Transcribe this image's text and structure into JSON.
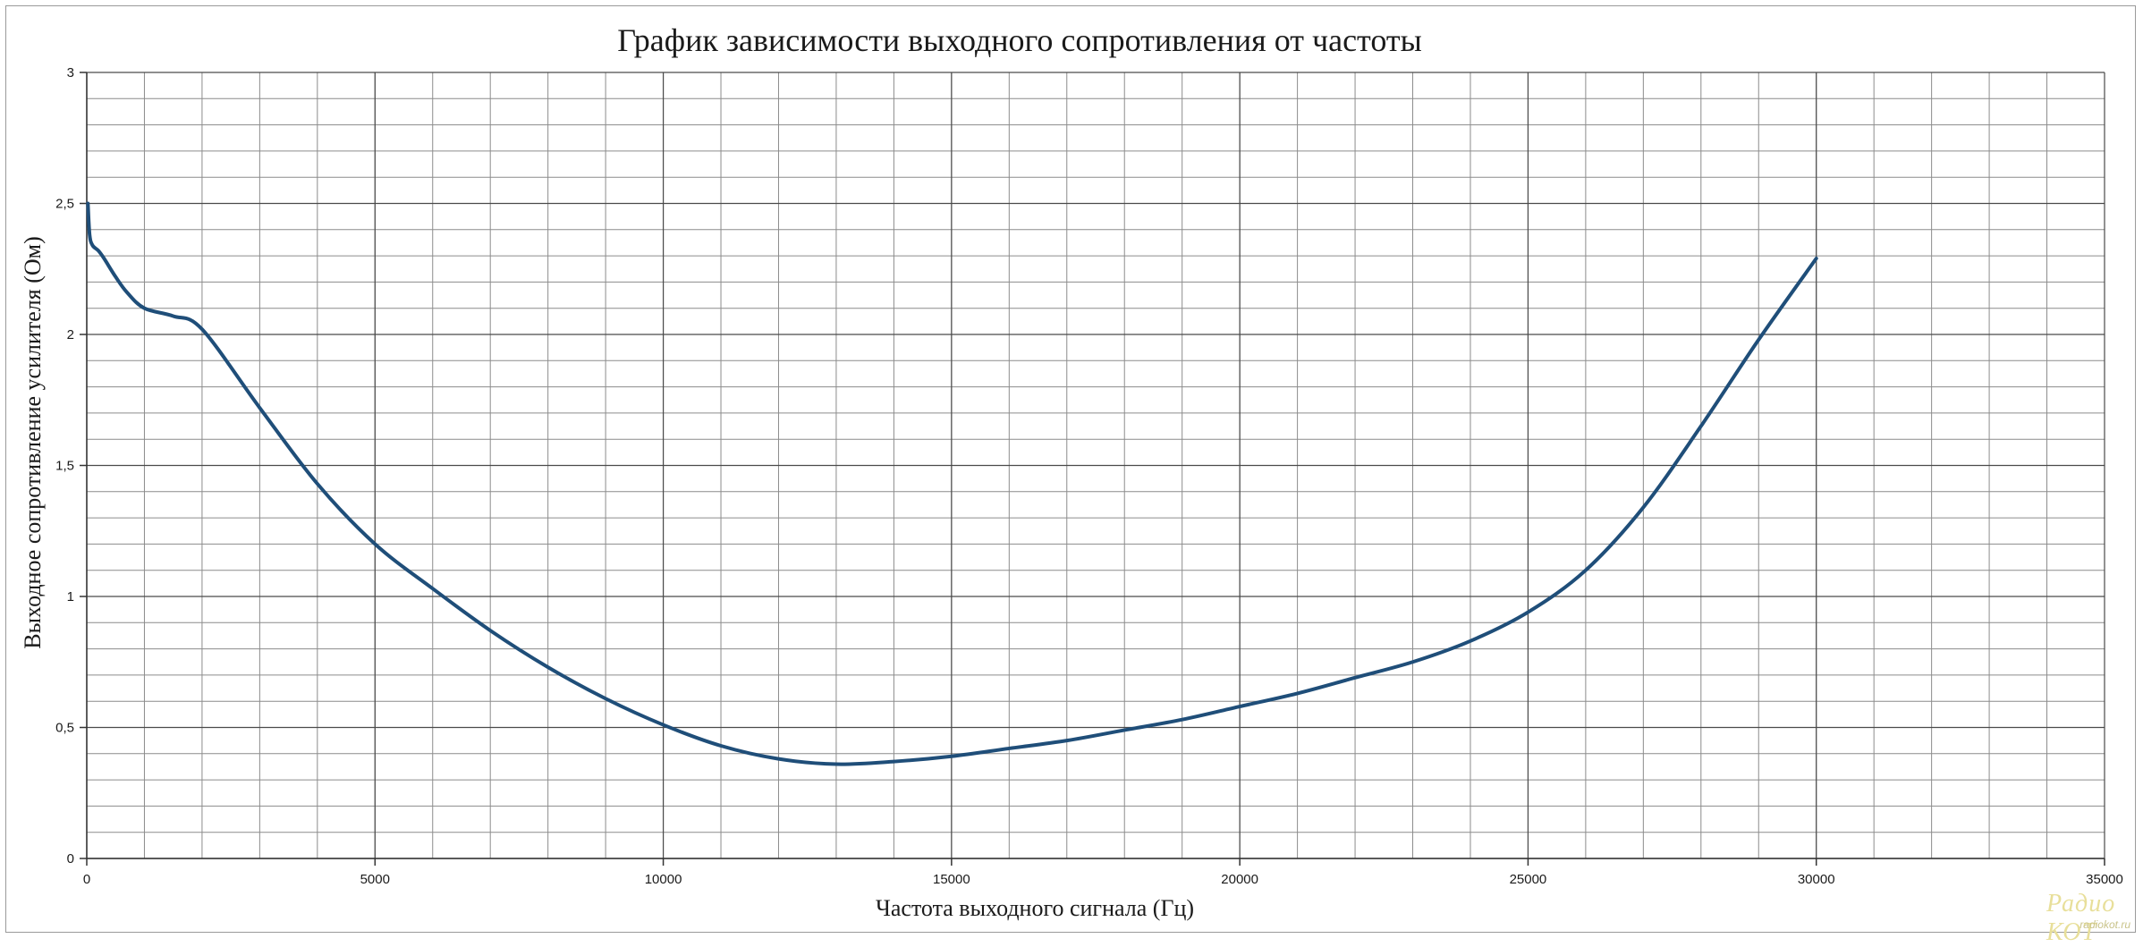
{
  "chart_data": {
    "type": "line",
    "title": "График зависимости выходного сопротивления от частоты",
    "xlabel": "Частота выходного сигнала (Гц)",
    "ylabel": "Выходное сопротивление усилителя (Ом)",
    "xlim": [
      0,
      35000
    ],
    "ylim": [
      0,
      3
    ],
    "x_ticks": [
      0,
      5000,
      10000,
      15000,
      20000,
      25000,
      30000,
      35000
    ],
    "x_tick_labels": [
      "0",
      "5000",
      "10000",
      "15000",
      "20000",
      "25000",
      "30000",
      "35000"
    ],
    "y_ticks": [
      0,
      0.5,
      1,
      1.5,
      2,
      2.5,
      3
    ],
    "y_tick_labels": [
      "0",
      "0,5",
      "1",
      "1,5",
      "2",
      "2,5",
      "3"
    ],
    "grid": true,
    "legend": "none",
    "series": [
      {
        "color": "#1f4e79",
        "x": [
          20,
          50,
          100,
          200,
          300,
          500,
          700,
          1000,
          1500,
          2000,
          3000,
          4000,
          5000,
          6000,
          7000,
          8000,
          9000,
          10000,
          11000,
          12000,
          13000,
          14000,
          15000,
          16000,
          17000,
          18000,
          19000,
          20000,
          21000,
          22000,
          23000,
          24000,
          25000,
          26000,
          27000,
          28000,
          29000,
          30000
        ],
        "y": [
          2.5,
          2.38,
          2.34,
          2.32,
          2.29,
          2.22,
          2.16,
          2.1,
          2.07,
          2.02,
          1.72,
          1.43,
          1.2,
          1.03,
          0.87,
          0.73,
          0.61,
          0.51,
          0.43,
          0.38,
          0.36,
          0.37,
          0.39,
          0.42,
          0.45,
          0.49,
          0.53,
          0.58,
          0.63,
          0.69,
          0.75,
          0.83,
          0.94,
          1.1,
          1.34,
          1.65,
          1.98,
          2.29
        ]
      }
    ]
  },
  "watermark": {
    "top": "Радио КОТ",
    "bottom": "radiokot.ru"
  }
}
